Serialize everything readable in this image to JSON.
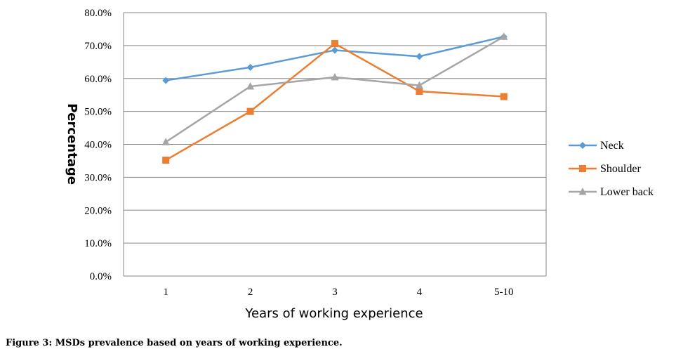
{
  "caption": "Figure 3: MSDs prevalence based on years of working experience.",
  "chart_data": {
    "type": "line",
    "categories": [
      "1",
      "2",
      "3",
      "4",
      "5-10"
    ],
    "xlabel": "Years of working experience",
    "ylabel": "Percentage",
    "ylim": [
      0,
      80
    ],
    "yticks": [
      "0.0%",
      "10.0%",
      "20.0%",
      "30.0%",
      "40.0%",
      "50.0%",
      "60.0%",
      "70.0%",
      "80.0%"
    ],
    "grid": true,
    "legend_position": "right",
    "series": [
      {
        "name": "Neck",
        "color": "#5B9BD5",
        "marker": "diamond",
        "values": [
          59.4,
          63.4,
          68.6,
          66.7,
          72.7
        ]
      },
      {
        "name": "Shoulder",
        "color": "#ED7D31",
        "marker": "square",
        "values": [
          35.2,
          50.0,
          70.6,
          56.1,
          54.5
        ]
      },
      {
        "name": "Lower back",
        "color": "#A5A5A5",
        "marker": "triangle",
        "values": [
          40.7,
          57.6,
          60.4,
          57.9,
          72.7
        ]
      }
    ]
  }
}
